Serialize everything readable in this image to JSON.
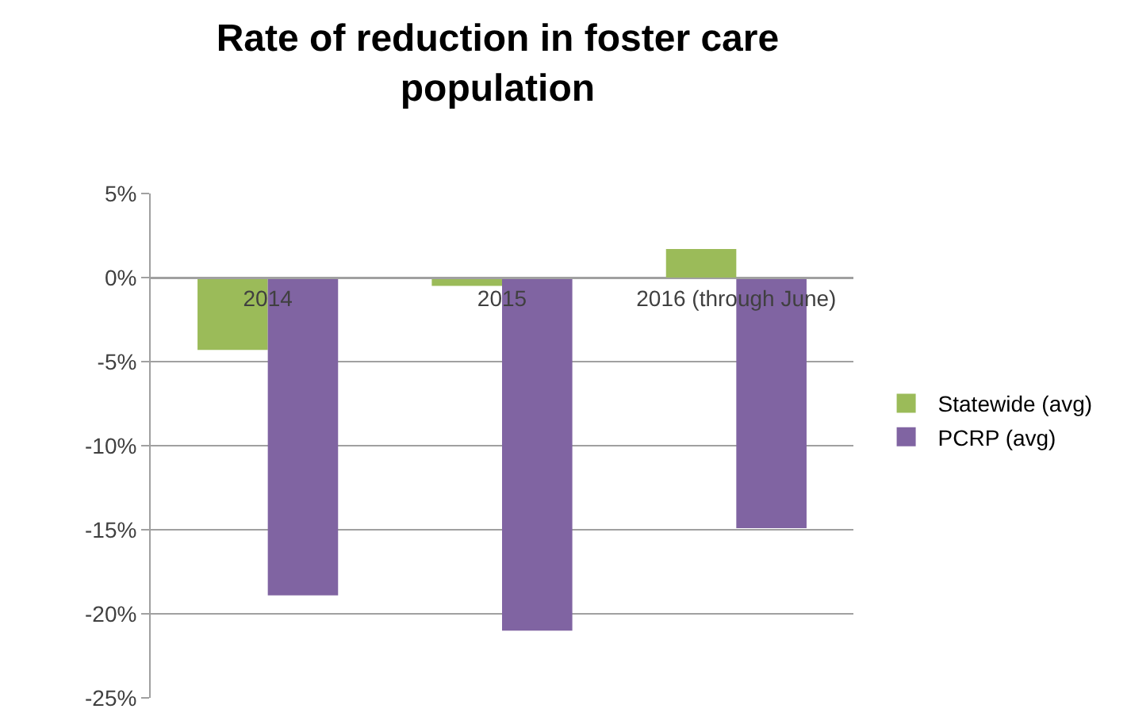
{
  "chart_data": {
    "type": "bar",
    "title": "Rate of reduction in foster care population",
    "categories": [
      "2014",
      "2015",
      "2016 (through June)"
    ],
    "series": [
      {
        "name": "Statewide (avg)",
        "color": "#9bbb59",
        "values": [
          -4.3,
          -0.5,
          1.7
        ]
      },
      {
        "name": "PCRP (avg)",
        "color": "#8064a2",
        "values": [
          -18.9,
          -21.0,
          -14.9
        ]
      }
    ],
    "ylim": [
      -25,
      5
    ],
    "yticks": [
      {
        "value": 5,
        "label": "5%"
      },
      {
        "value": 0,
        "label": "0%"
      },
      {
        "value": -5,
        "label": "-5%"
      },
      {
        "value": -10,
        "label": "-10%"
      },
      {
        "value": -15,
        "label": "-15%"
      },
      {
        "value": -20,
        "label": "-20%"
      },
      {
        "value": -25,
        "label": "-25%"
      }
    ],
    "grid": "y",
    "legend": "right"
  }
}
